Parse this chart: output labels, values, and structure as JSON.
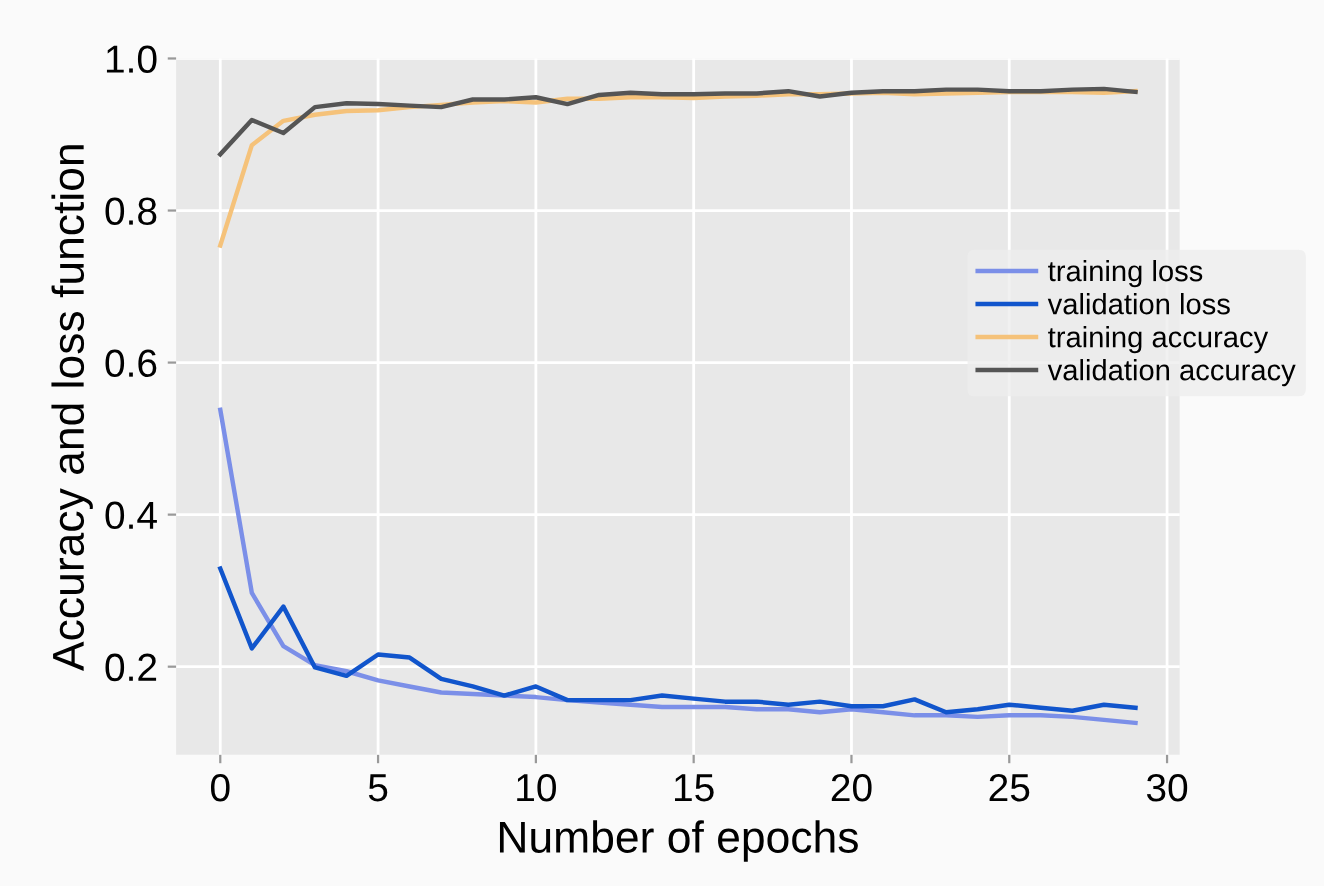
{
  "chart_data": {
    "type": "line",
    "xlabel": "Number of epochs",
    "ylabel": "Accuracy and loss function",
    "x": [
      0,
      1,
      2,
      3,
      4,
      5,
      6,
      7,
      8,
      9,
      10,
      11,
      12,
      13,
      14,
      15,
      16,
      17,
      18,
      19,
      20,
      21,
      22,
      23,
      24,
      25,
      26,
      27,
      28,
      29
    ],
    "xlim": [
      -1.4,
      30.4
    ],
    "xticks": [
      0,
      5,
      10,
      15,
      20,
      25,
      30
    ],
    "ylim": [
      0.084,
      1.0
    ],
    "yticks": [
      0.2,
      0.4,
      0.6,
      0.8,
      {
        "value": 1.0,
        "label": "1.0"
      }
    ],
    "grid": true,
    "legend": "right",
    "line_style": "solid",
    "marker": "none",
    "series": [
      {
        "name": "training loss",
        "color": "#7b8fe8",
        "values": [
          0.538,
          0.297,
          0.227,
          0.202,
          0.194,
          0.182,
          0.174,
          0.166,
          0.164,
          0.162,
          0.16,
          0.156,
          0.153,
          0.15,
          0.147,
          0.147,
          0.147,
          0.144,
          0.144,
          0.14,
          0.144,
          0.14,
          0.136,
          0.136,
          0.134,
          0.136,
          0.136,
          0.134,
          0.13,
          0.126
        ]
      },
      {
        "name": "validation loss",
        "color": "#1155cc",
        "values": [
          0.329,
          0.224,
          0.279,
          0.199,
          0.188,
          0.216,
          0.212,
          0.184,
          0.174,
          0.162,
          0.174,
          0.156,
          0.156,
          0.156,
          0.162,
          0.158,
          0.154,
          0.154,
          0.15,
          0.154,
          0.148,
          0.148,
          0.157,
          0.14,
          0.144,
          0.15,
          0.146,
          0.142,
          0.15,
          0.146
        ]
      },
      {
        "name": "training accuracy",
        "color": "#f5c27a",
        "values": [
          0.754,
          0.886,
          0.918,
          0.926,
          0.931,
          0.932,
          0.936,
          0.939,
          0.942,
          0.944,
          0.942,
          0.947,
          0.947,
          0.949,
          0.949,
          0.948,
          0.95,
          0.951,
          0.953,
          0.953,
          0.954,
          0.955,
          0.953,
          0.954,
          0.955,
          0.956,
          0.956,
          0.956,
          0.955,
          0.957
        ]
      },
      {
        "name": "validation accuracy",
        "color": "#555555",
        "values": [
          0.874,
          0.919,
          0.902,
          0.936,
          0.941,
          0.94,
          0.938,
          0.936,
          0.946,
          0.946,
          0.949,
          0.94,
          0.952,
          0.955,
          0.953,
          0.953,
          0.954,
          0.954,
          0.957,
          0.95,
          0.955,
          0.957,
          0.957,
          0.959,
          0.959,
          0.957,
          0.957,
          0.959,
          0.96,
          0.956
        ]
      }
    ]
  }
}
